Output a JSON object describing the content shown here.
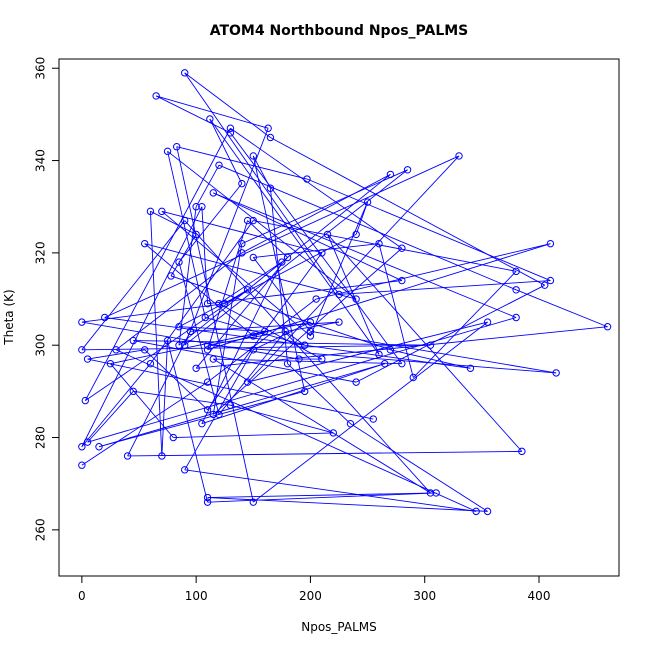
{
  "chart_data": {
    "type": "line",
    "title": "ATOM4 Northbound Npos_PALMS",
    "xlabel": "Npos_PALMS",
    "ylabel": "Theta (K)",
    "xlim": [
      -20,
      470
    ],
    "ylim": [
      250,
      362
    ],
    "x_ticks": [
      0,
      100,
      200,
      300,
      400
    ],
    "y_ticks": [
      260,
      280,
      300,
      320,
      340,
      360
    ],
    "color": "#0000ff",
    "grid": false,
    "legend": "none",
    "series": [
      {
        "points": [
          [
            0,
            274
          ],
          [
            110,
            292
          ],
          [
            205,
            310
          ],
          [
            410,
            322
          ],
          [
            150,
            302
          ],
          [
            55,
            322
          ],
          [
            240,
            310
          ],
          [
            75,
            342
          ],
          [
            108,
            306
          ],
          [
            195,
            300
          ],
          [
            20,
            306
          ],
          [
            330,
            341
          ],
          [
            145,
            292
          ],
          [
            355,
            305
          ],
          [
            150,
            266
          ],
          [
            83,
            343
          ],
          [
            197,
            336
          ],
          [
            410,
            314
          ],
          [
            225,
            311
          ],
          [
            90,
            359
          ],
          [
            165,
            345
          ],
          [
            405,
            313
          ],
          [
            240,
            292
          ],
          [
            45,
            301
          ],
          [
            305,
            300
          ],
          [
            0,
            299
          ],
          [
            90,
            327
          ],
          [
            305,
            268
          ],
          [
            115,
            297
          ],
          [
            280,
            296
          ],
          [
            130,
            346
          ],
          [
            65,
            354
          ],
          [
            163,
            347
          ],
          [
            90,
            300
          ],
          [
            285,
            338
          ],
          [
            140,
            322
          ],
          [
            115,
            285
          ],
          [
            280,
            321
          ],
          [
            130,
            347
          ],
          [
            3,
            288
          ],
          [
            145,
            312
          ],
          [
            125,
            309
          ],
          [
            0,
            305
          ],
          [
            190,
            297
          ],
          [
            210,
            297
          ],
          [
            120,
            309
          ],
          [
            175,
            318
          ],
          [
            105,
            283
          ],
          [
            265,
            296
          ],
          [
            15,
            278
          ],
          [
            195,
            290
          ],
          [
            150,
            341
          ],
          [
            165,
            334
          ],
          [
            180,
            296
          ],
          [
            235,
            283
          ],
          [
            355,
            264
          ],
          [
            110,
            267
          ],
          [
            310,
            268
          ],
          [
            110,
            266
          ],
          [
            75,
            301
          ],
          [
            70,
            276
          ],
          [
            60,
            329
          ],
          [
            100,
            324
          ],
          [
            78,
            315
          ],
          [
            270,
            299
          ],
          [
            340,
            295
          ],
          [
            195,
            300
          ],
          [
            178,
            303
          ],
          [
            120,
            285
          ],
          [
            85,
            318
          ],
          [
            140,
            335
          ],
          [
            112,
            349
          ],
          [
            260,
            298
          ],
          [
            215,
            324
          ],
          [
            385,
            277
          ],
          [
            40,
            276
          ],
          [
            95,
            303
          ],
          [
            225,
            305
          ],
          [
            110,
            300
          ],
          [
            415,
            294
          ],
          [
            200,
            303
          ],
          [
            150,
            319
          ],
          [
            260,
            322
          ],
          [
            290,
            293
          ],
          [
            380,
            316
          ],
          [
            150,
            327
          ],
          [
            60,
            296
          ],
          [
            0,
            278
          ],
          [
            105,
            330
          ],
          [
            110,
            309
          ],
          [
            280,
            314
          ],
          [
            115,
            333
          ],
          [
            380,
            306
          ],
          [
            5,
            279
          ],
          [
            45,
            290
          ],
          [
            130,
            287
          ],
          [
            220,
            281
          ],
          [
            80,
            280
          ],
          [
            25,
            296
          ],
          [
            200,
            305
          ],
          [
            150,
            299
          ],
          [
            90,
            273
          ],
          [
            345,
            264
          ],
          [
            30,
            299
          ],
          [
            140,
            320
          ],
          [
            270,
            337
          ],
          [
            85,
            300
          ],
          [
            100,
            330
          ],
          [
            120,
            339
          ],
          [
            380,
            312
          ],
          [
            460,
            304
          ],
          [
            100,
            295
          ],
          [
            180,
            319
          ],
          [
            145,
            327
          ],
          [
            110,
            299
          ],
          [
            160,
            303
          ],
          [
            85,
            304
          ],
          [
            240,
            324
          ],
          [
            250,
            331
          ],
          [
            200,
            302
          ],
          [
            70,
            329
          ],
          [
            210,
            320
          ],
          [
            110,
            286
          ],
          [
            55,
            299
          ],
          [
            5,
            297
          ],
          [
            255,
            284
          ]
        ]
      }
    ]
  }
}
